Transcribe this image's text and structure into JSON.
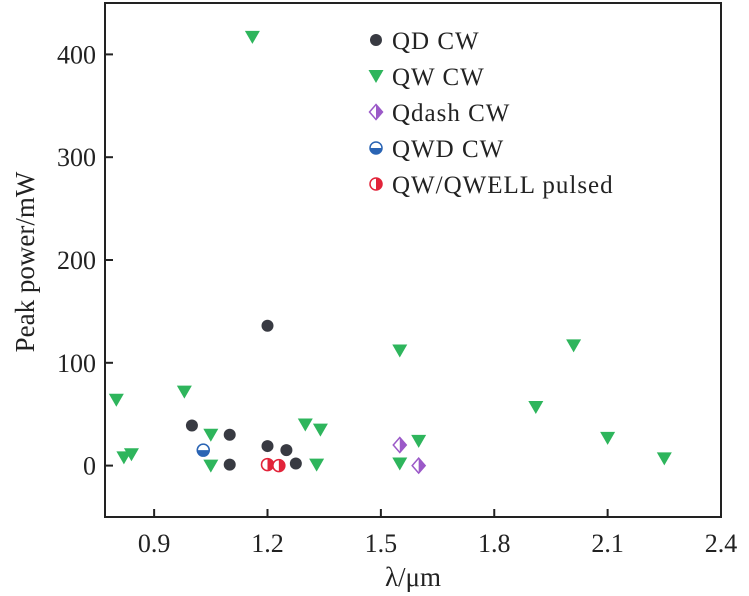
{
  "chart_data": {
    "type": "scatter",
    "xlabel": "λ/μm",
    "ylabel": "Peak power/mW",
    "xlim": [
      0.77,
      2.4
    ],
    "ylim": [
      -50,
      450
    ],
    "xticks": [
      {
        "value": 0.9,
        "label": "0.9"
      },
      {
        "value": 1.2,
        "label": "1.2"
      },
      {
        "value": 1.5,
        "label": "1.5"
      },
      {
        "value": 1.8,
        "label": "1.8"
      },
      {
        "value": 2.1,
        "label": "2.1"
      },
      {
        "value": 2.4,
        "label": "2.4"
      }
    ],
    "yticks": [
      {
        "value": 0,
        "label": "0"
      },
      {
        "value": 100,
        "label": "100"
      },
      {
        "value": 200,
        "label": "200"
      },
      {
        "value": 300,
        "label": "300"
      },
      {
        "value": 400,
        "label": "400"
      }
    ],
    "grid": false,
    "legend_position": "top-right",
    "series": [
      {
        "name": "QD CW",
        "marker": "circle",
        "color": "#383a42",
        "points": [
          {
            "x": 1.0,
            "y": 39
          },
          {
            "x": 1.1,
            "y": 30
          },
          {
            "x": 1.1,
            "y": 1
          },
          {
            "x": 1.2,
            "y": 136
          },
          {
            "x": 1.2,
            "y": 19
          },
          {
            "x": 1.25,
            "y": 15
          },
          {
            "x": 1.275,
            "y": 2
          }
        ]
      },
      {
        "name": "QW CW",
        "marker": "triangle-down",
        "color": "#2eb55c",
        "points": [
          {
            "x": 0.8,
            "y": 64
          },
          {
            "x": 0.82,
            "y": 8
          },
          {
            "x": 0.84,
            "y": 11
          },
          {
            "x": 0.98,
            "y": 72
          },
          {
            "x": 1.05,
            "y": 30
          },
          {
            "x": 1.05,
            "y": 0
          },
          {
            "x": 1.16,
            "y": 417
          },
          {
            "x": 1.3,
            "y": 40
          },
          {
            "x": 1.33,
            "y": 1
          },
          {
            "x": 1.34,
            "y": 35
          },
          {
            "x": 1.55,
            "y": 112
          },
          {
            "x": 1.55,
            "y": 2
          },
          {
            "x": 1.6,
            "y": 24
          },
          {
            "x": 1.91,
            "y": 57
          },
          {
            "x": 2.01,
            "y": 117
          },
          {
            "x": 2.1,
            "y": 27
          },
          {
            "x": 2.25,
            "y": 7
          }
        ]
      },
      {
        "name": "Qdash CW",
        "marker": "diamond-half",
        "color": "#9b59c8",
        "points": [
          {
            "x": 1.55,
            "y": 20
          },
          {
            "x": 1.6,
            "y": 0
          }
        ]
      },
      {
        "name": "QWD CW",
        "marker": "circle-half-bottom",
        "color": "#2a64b4",
        "points": [
          {
            "x": 1.03,
            "y": 15
          }
        ]
      },
      {
        "name": "QW/QWELL pulsed",
        "marker": "circle-half-right",
        "color": "#e2243a",
        "points": [
          {
            "x": 1.2,
            "y": 1
          },
          {
            "x": 1.23,
            "y": 0
          }
        ]
      }
    ]
  }
}
